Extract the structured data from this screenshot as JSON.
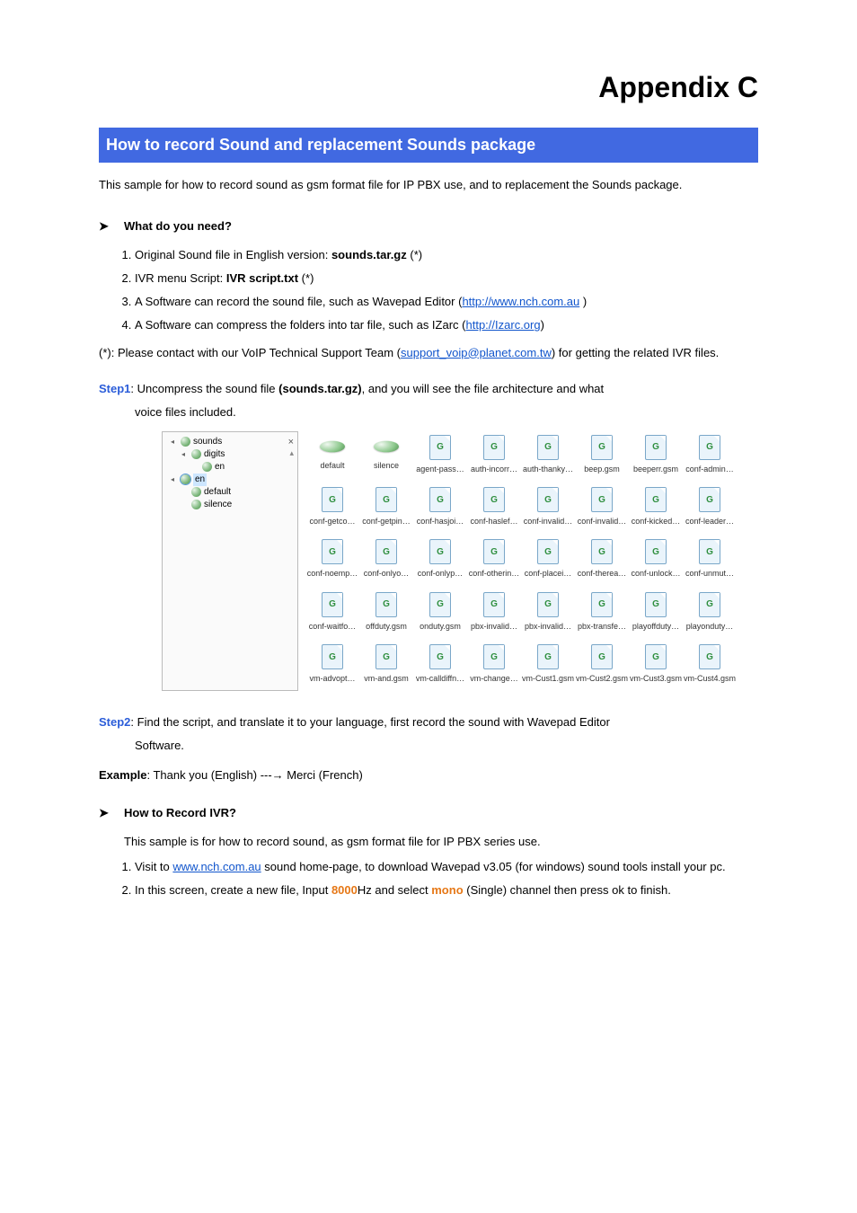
{
  "page": {
    "title": "Appendix C",
    "section_header": "How to record Sound and replacement Sounds package",
    "intro": "This sample for how to record sound as gsm format file for IP PBX use, and to replacement the Sounds package."
  },
  "need": {
    "heading": "What do you need?",
    "items": [
      {
        "pre": "Original Sound file in English version: ",
        "bold": "sounds.tar.gz",
        "post": " (*)"
      },
      {
        "pre": "IVR menu Script: ",
        "bold": "IVR script.txt",
        "post": " (*)"
      },
      {
        "pre": "A Software can record the sound file, such as Wavepad Editor (",
        "link": "http://www.nch.com.au",
        "post": " )"
      },
      {
        "pre": "A Software can compress the folders into tar file, such as IZarc (",
        "link": "http://Izarc.org",
        "post": ")"
      }
    ],
    "footnote_pre": "(*): Please contact with our VoIP Technical Support Team (",
    "footnote_link": "support_voip@planet.com.tw",
    "footnote_post": ") for getting the related IVR files."
  },
  "step1": {
    "label": "Step1",
    "text_pre": ": Uncompress the sound file ",
    "text_bold": "(sounds.tar.gz)",
    "text_post": ", and you will see the file architecture and what",
    "text_line2": "voice files included."
  },
  "screenshot": {
    "tree": [
      {
        "indent": 0,
        "tri": true,
        "label": "sounds"
      },
      {
        "indent": 1,
        "tri": true,
        "label": "digits"
      },
      {
        "indent": 2,
        "tri": false,
        "label": "en"
      },
      {
        "indent": 0,
        "tri": true,
        "label": "en",
        "selected": true,
        "box": true
      },
      {
        "indent": 1,
        "tri": false,
        "label": "default"
      },
      {
        "indent": 1,
        "tri": false,
        "label": "silence"
      }
    ],
    "files": [
      {
        "type": "folder",
        "name": "default"
      },
      {
        "type": "folder",
        "name": "silence"
      },
      {
        "type": "file",
        "name": "agent-pass…"
      },
      {
        "type": "file",
        "name": "auth-incorr…"
      },
      {
        "type": "file",
        "name": "auth-thanky…"
      },
      {
        "type": "file",
        "name": "beep.gsm"
      },
      {
        "type": "file",
        "name": "beeperr.gsm"
      },
      {
        "type": "file",
        "name": "conf-admin…"
      },
      {
        "type": "file",
        "name": "conf-getco…"
      },
      {
        "type": "file",
        "name": "conf-getpin…"
      },
      {
        "type": "file",
        "name": "conf-hasjoi…"
      },
      {
        "type": "file",
        "name": "conf-haslef…"
      },
      {
        "type": "file",
        "name": "conf-invalid…"
      },
      {
        "type": "file",
        "name": "conf-invalid…"
      },
      {
        "type": "file",
        "name": "conf-kicked…"
      },
      {
        "type": "file",
        "name": "conf-leader…"
      },
      {
        "type": "file",
        "name": "conf-noemp…"
      },
      {
        "type": "file",
        "name": "conf-onlyo…"
      },
      {
        "type": "file",
        "name": "conf-onlyp…"
      },
      {
        "type": "file",
        "name": "conf-otherin…"
      },
      {
        "type": "file",
        "name": "conf-placei…"
      },
      {
        "type": "file",
        "name": "conf-therea…"
      },
      {
        "type": "file",
        "name": "conf-unlock…"
      },
      {
        "type": "file",
        "name": "conf-unmut…"
      },
      {
        "type": "file",
        "name": "conf-waitfo…"
      },
      {
        "type": "file",
        "name": "offduty.gsm"
      },
      {
        "type": "file",
        "name": "onduty.gsm"
      },
      {
        "type": "file",
        "name": "pbx-invalid…"
      },
      {
        "type": "file",
        "name": "pbx-invalid…"
      },
      {
        "type": "file",
        "name": "pbx-transfe…"
      },
      {
        "type": "file",
        "name": "playoffduty…"
      },
      {
        "type": "file",
        "name": "playonduty…"
      },
      {
        "type": "file",
        "name": "vm-advopt…"
      },
      {
        "type": "file",
        "name": "vm-and.gsm"
      },
      {
        "type": "file",
        "name": "vm-calldiffn…"
      },
      {
        "type": "file",
        "name": "vm-change…"
      },
      {
        "type": "file",
        "name": "vm-Cust1.gsm"
      },
      {
        "type": "file",
        "name": "vm-Cust2.gsm"
      },
      {
        "type": "file",
        "name": "vm-Cust3.gsm"
      },
      {
        "type": "file",
        "name": "vm-Cust4.gsm"
      }
    ]
  },
  "step2": {
    "label": "Step2",
    "text": ": Find the script, and translate it to your language, first record the sound with Wavepad Editor",
    "text_line2": "Software.",
    "example_label": "Example",
    "example_text": ": Thank you (English) ---→ Merci (French)"
  },
  "record": {
    "heading": "How to Record IVR?",
    "intro": "This sample is for how to record sound, as gsm format file for IP PBX series use.",
    "item1_pre": "Visit to ",
    "item1_link": "www.nch.com.au",
    "item1_post": " sound home-page, to download Wavepad v3.05 (for windows) sound tools install your pc.",
    "item2_pre": "In this screen, create a new file, Input ",
    "item2_hz": "8000",
    "item2_mid": "Hz and select ",
    "item2_mono": "mono",
    "item2_post": " (Single) channel then press ok to finish."
  }
}
